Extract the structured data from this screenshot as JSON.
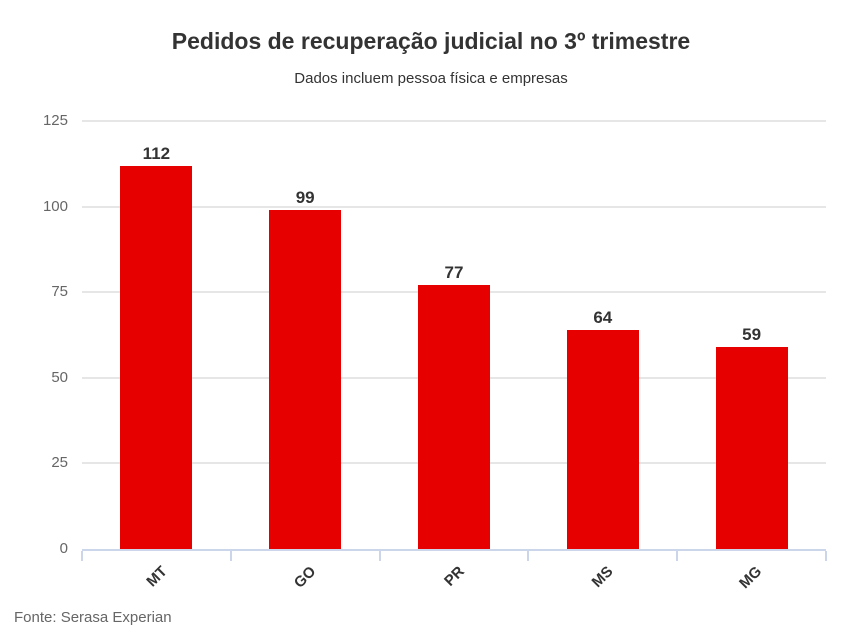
{
  "chart_data": {
    "type": "bar",
    "title": "Pedidos de recuperação judicial no 3º trimestre",
    "subtitle": "Dados incluem pessoa física e empresas",
    "categories": [
      "MT",
      "GO",
      "PR",
      "MS",
      "MG"
    ],
    "values": [
      112,
      99,
      77,
      64,
      59
    ],
    "xlabel": "",
    "ylabel": "",
    "ylim": [
      0,
      125
    ],
    "y_ticks": [
      0,
      25,
      50,
      75,
      100,
      125
    ],
    "grid": true,
    "legend": false,
    "annotation_source": "Fonte: Serasa Experian"
  },
  "colors": {
    "bar": "#e60000",
    "gridline": "#e6e6e6",
    "axis": "#ccd6eb",
    "title_text": "#333333",
    "tick_label_text": "#666666",
    "data_label_text": "#333333",
    "background": "#ffffff"
  }
}
